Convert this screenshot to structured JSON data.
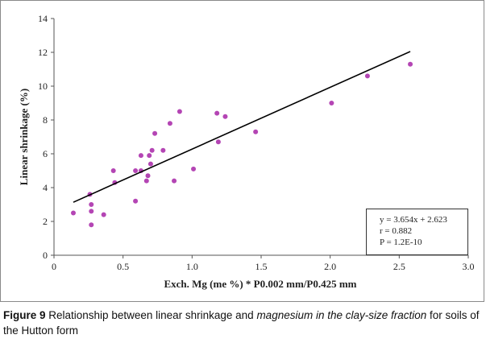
{
  "chart_data": {
    "type": "scatter",
    "xlabel": "Exch. Mg (me %) * P0.002 mm/P0.425 mm",
    "ylabel": "Linear shrinkage (%)",
    "xlim": [
      0,
      3.0
    ],
    "ylim": [
      0,
      14
    ],
    "x_ticks": [
      0,
      0.5,
      1.0,
      1.5,
      2.0,
      2.5,
      3.0
    ],
    "x_tick_labels": [
      "0",
      "0.5",
      "1.0",
      "1.5",
      "2.0",
      "2.5",
      "3.0"
    ],
    "y_ticks": [
      0,
      2,
      4,
      6,
      8,
      10,
      12,
      14
    ],
    "y_tick_labels": [
      "0",
      "2",
      "4",
      "6",
      "8",
      "10",
      "12",
      "14"
    ],
    "grid": false,
    "marker_color": "#b445b4",
    "line_color": "#000000",
    "points": [
      {
        "x": 0.14,
        "y": 2.5
      },
      {
        "x": 0.26,
        "y": 3.6
      },
      {
        "x": 0.27,
        "y": 3.0
      },
      {
        "x": 0.27,
        "y": 2.6
      },
      {
        "x": 0.27,
        "y": 1.8
      },
      {
        "x": 0.36,
        "y": 2.4
      },
      {
        "x": 0.43,
        "y": 5.0
      },
      {
        "x": 0.44,
        "y": 4.3
      },
      {
        "x": 0.59,
        "y": 5.0
      },
      {
        "x": 0.59,
        "y": 3.2
      },
      {
        "x": 0.63,
        "y": 5.9
      },
      {
        "x": 0.63,
        "y": 5.0
      },
      {
        "x": 0.67,
        "y": 4.4
      },
      {
        "x": 0.68,
        "y": 4.7
      },
      {
        "x": 0.69,
        "y": 5.9
      },
      {
        "x": 0.7,
        "y": 5.4
      },
      {
        "x": 0.71,
        "y": 6.2
      },
      {
        "x": 0.73,
        "y": 7.2
      },
      {
        "x": 0.79,
        "y": 6.2
      },
      {
        "x": 0.84,
        "y": 7.8
      },
      {
        "x": 0.87,
        "y": 4.4
      },
      {
        "x": 0.91,
        "y": 8.5
      },
      {
        "x": 1.01,
        "y": 5.1
      },
      {
        "x": 1.18,
        "y": 8.4
      },
      {
        "x": 1.19,
        "y": 6.7
      },
      {
        "x": 1.24,
        "y": 8.2
      },
      {
        "x": 1.46,
        "y": 7.3
      },
      {
        "x": 2.01,
        "y": 9.0
      },
      {
        "x": 2.27,
        "y": 10.6
      },
      {
        "x": 2.58,
        "y": 11.3
      }
    ],
    "trendline": {
      "slope": 3.654,
      "intercept": 2.623,
      "x_start": 0.14,
      "x_end": 2.58
    },
    "stats": {
      "equation": "y = 3.654x + 2.623",
      "r": "r = 0.882",
      "p": "P = 1.2E-10"
    }
  },
  "caption": {
    "figure_number": "Figure 9",
    "text_before": " Relationship between linear shrinkage and ",
    "text_italic": "magnesium in the clay-size fraction",
    "text_after": " for soils of the Hutton form"
  }
}
